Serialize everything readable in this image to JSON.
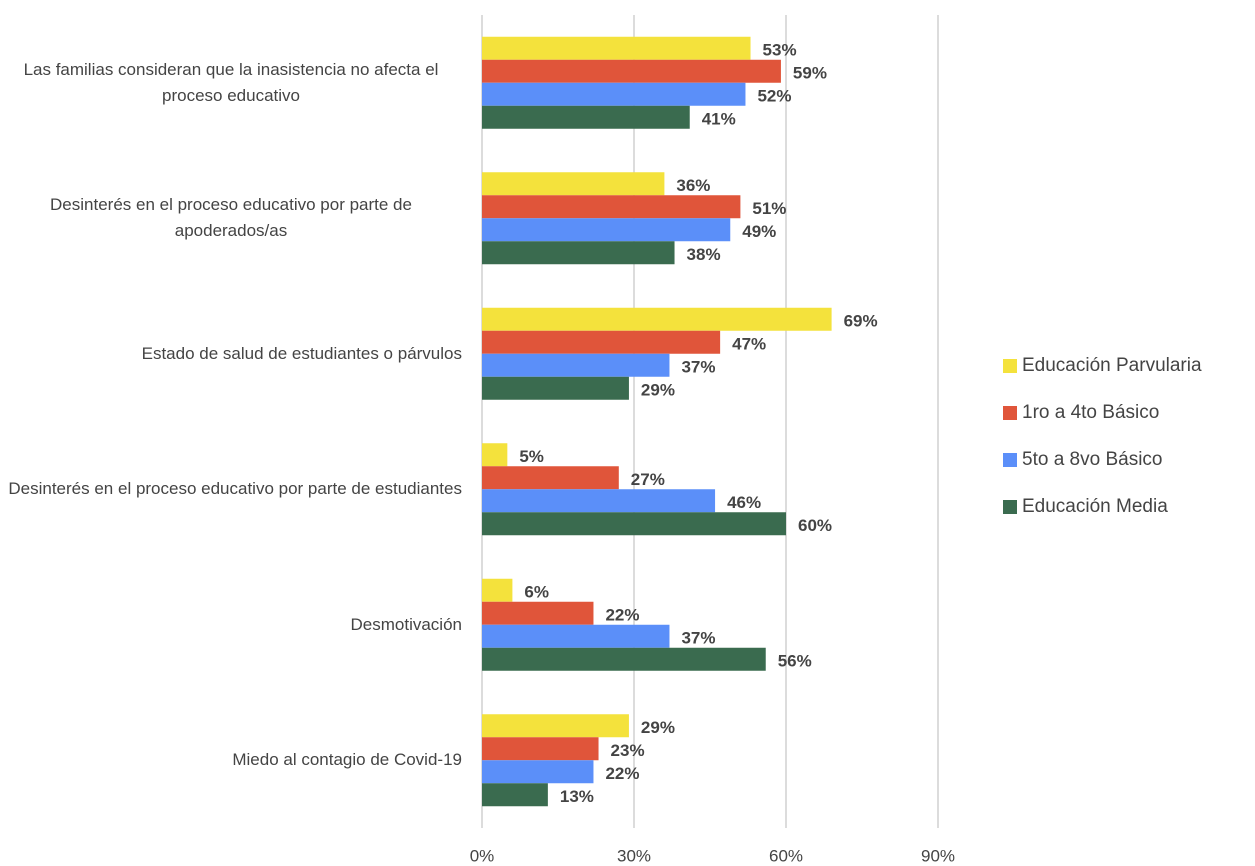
{
  "chart_data": {
    "type": "bar",
    "orientation": "horizontal",
    "categories": [
      "Las familias consideran que la inasistencia no afecta el proceso educativo",
      "Desinterés en el proceso educativo por parte de apoderados/as",
      "Estado de salud de estudiantes o párvulos",
      "Desinterés en el proceso educativo por parte de estudiantes",
      "Desmotivación",
      "Miedo al contagio de Covid-19"
    ],
    "series": [
      {
        "name": "Educación Parvularia",
        "color": "#f4e23c",
        "values": [
          53,
          36,
          69,
          5,
          6,
          29
        ],
        "value_labels": [
          "53%",
          "36%",
          "69%",
          "5%",
          "6%",
          "29%"
        ]
      },
      {
        "name": "1ro a 4to Básico",
        "color": "#e0553a",
        "values": [
          59,
          51,
          47,
          27,
          22,
          23
        ],
        "value_labels": [
          "59%",
          "51%",
          "47%",
          "27%",
          "22%",
          "23%"
        ]
      },
      {
        "name": "5to a 8vo Básico",
        "color": "#5b8ff9",
        "values": [
          52,
          49,
          37,
          46,
          37,
          22
        ],
        "value_labels": [
          "52%",
          "49%",
          "37%",
          "46%",
          "37%",
          "22%"
        ]
      },
      {
        "name": "Educación Media",
        "color": "#3a6b4f",
        "values": [
          41,
          38,
          29,
          60,
          56,
          13
        ],
        "value_labels": [
          "41%",
          "38%",
          "29%",
          "60%",
          "56%",
          "13%"
        ]
      }
    ],
    "xlim": [
      0,
      90
    ],
    "xticks": [
      {
        "value": 0,
        "label": "0%"
      },
      {
        "value": 30,
        "label": "30%"
      },
      {
        "value": 60,
        "label": "60%"
      },
      {
        "value": 90,
        "label": "90%"
      }
    ],
    "grid": true,
    "legend": "right"
  }
}
